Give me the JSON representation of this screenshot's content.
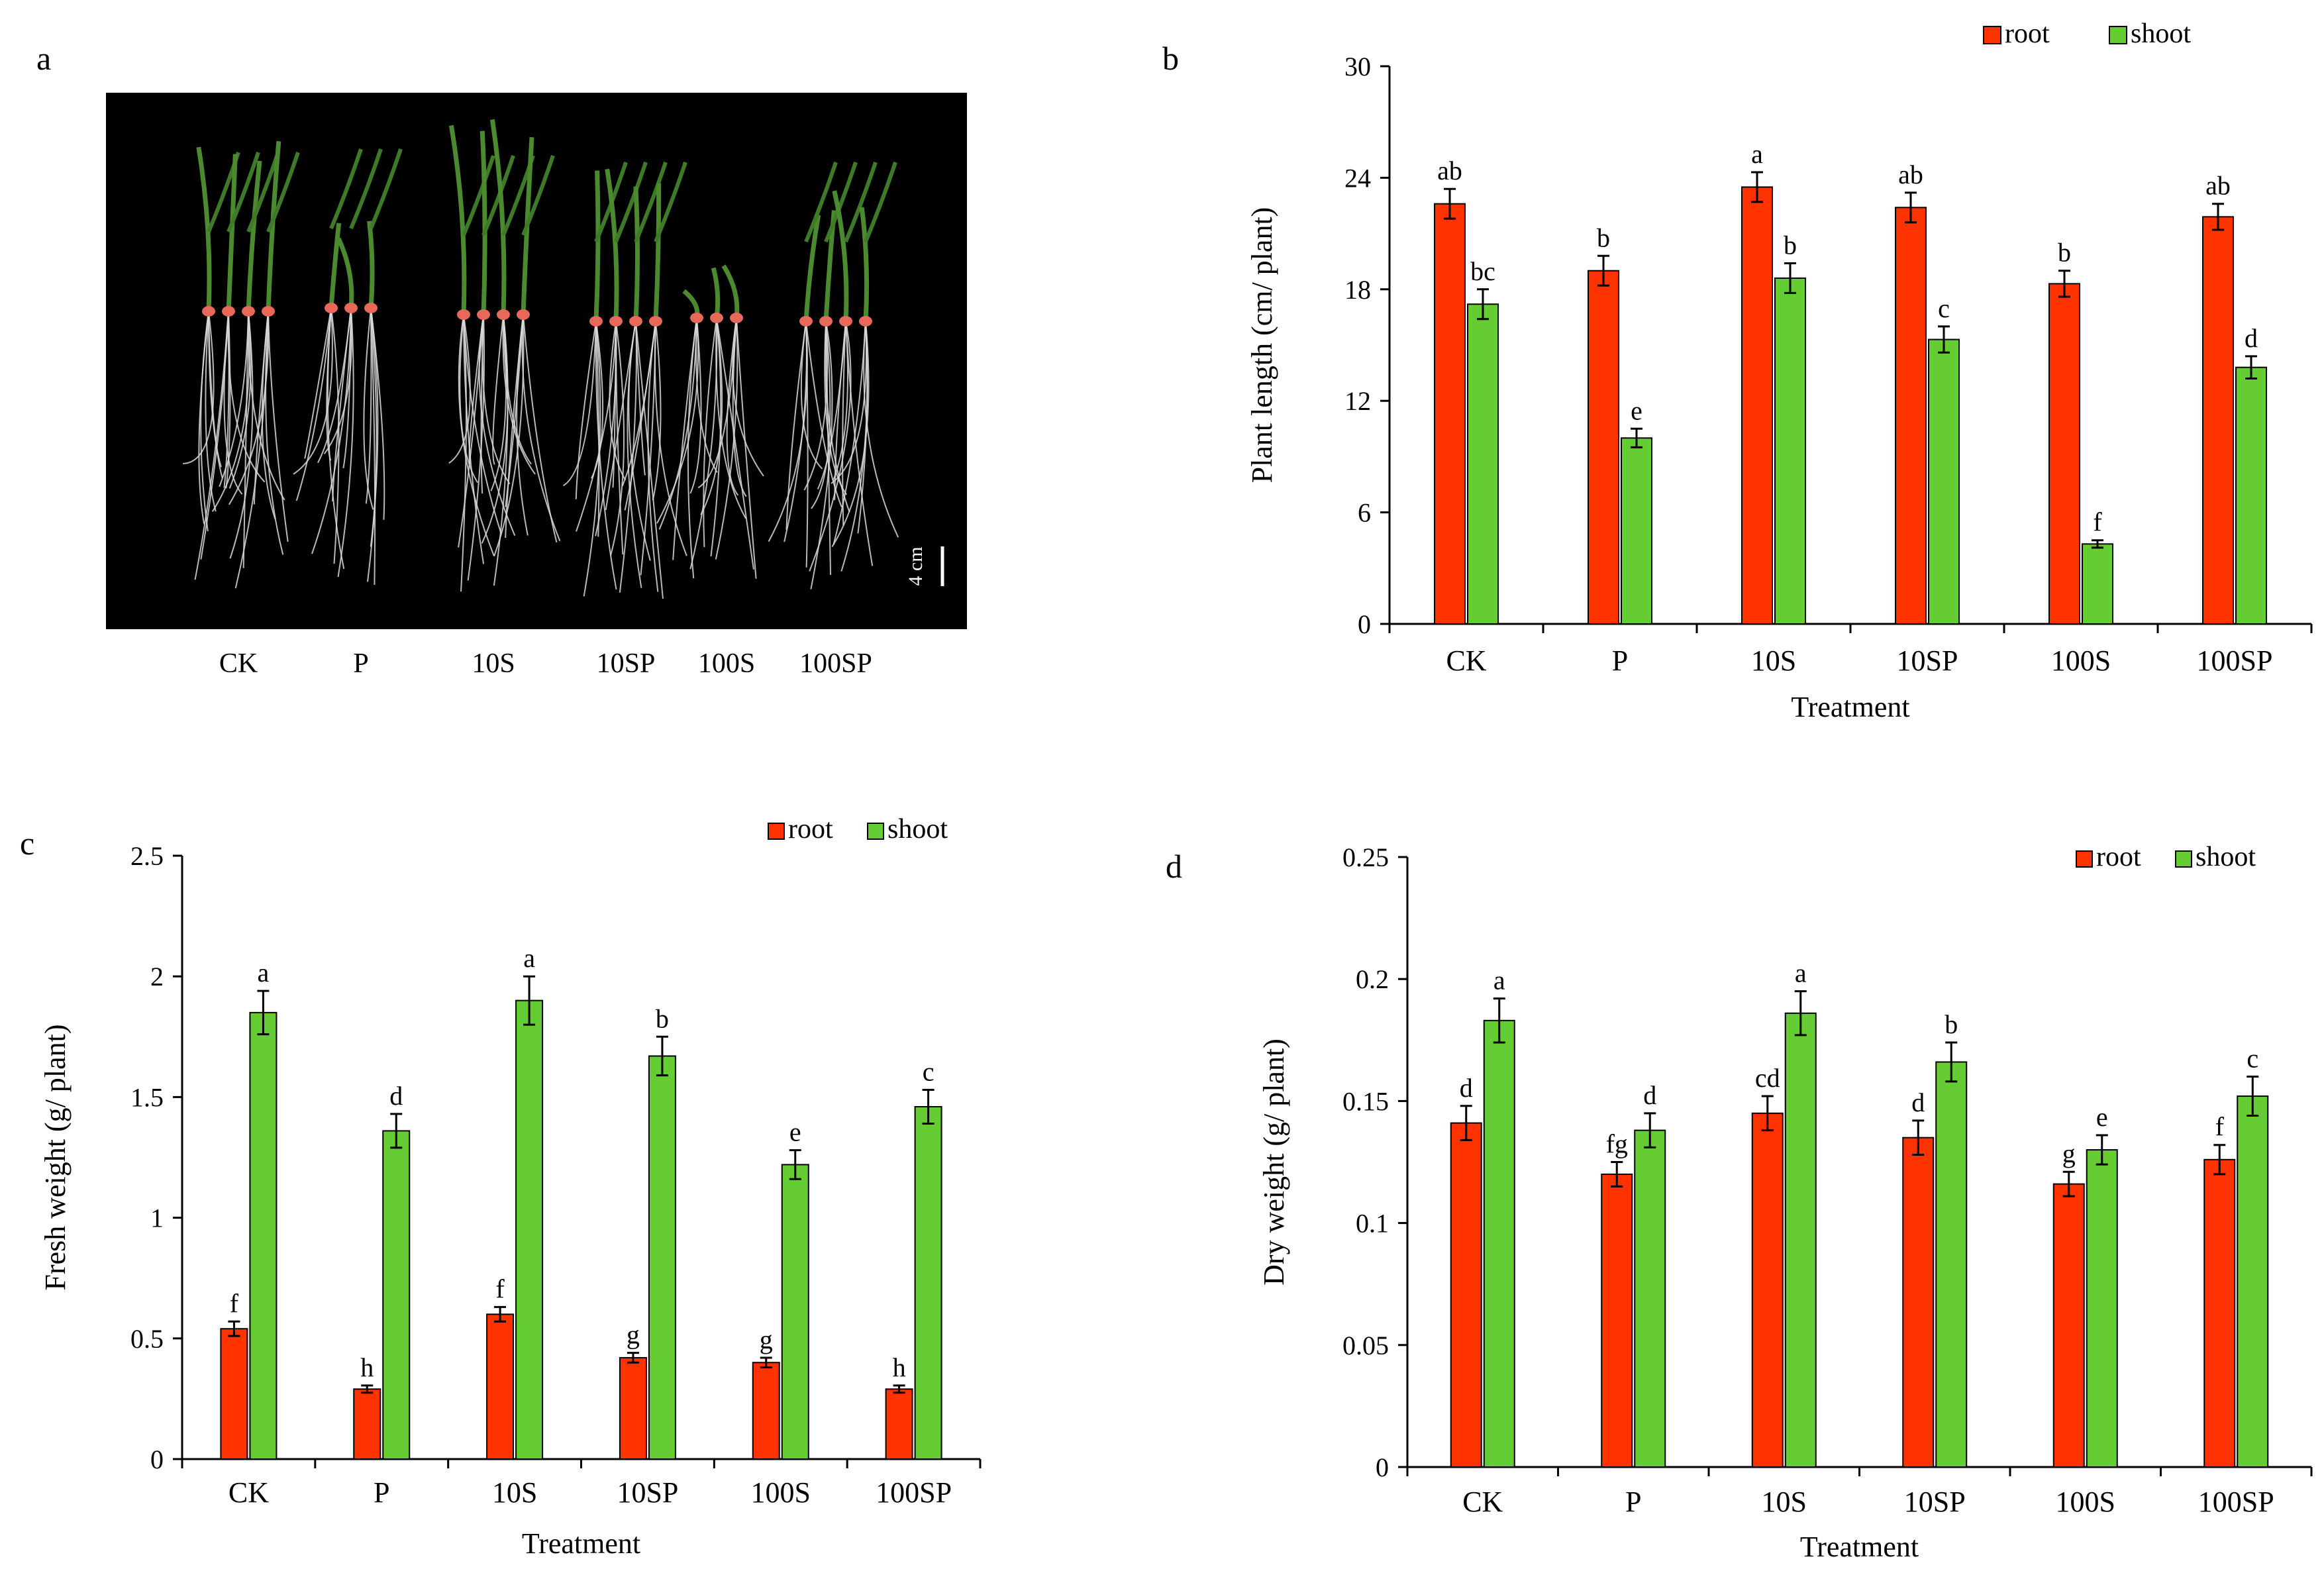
{
  "colors": {
    "root": "#ff3300",
    "shoot": "#66cc33",
    "axis": "#000000",
    "photo_bg": "#000000"
  },
  "panel_a": {
    "label": "a",
    "labels": [
      "CK",
      "P",
      "10S",
      "10SP",
      "100S",
      "100SP"
    ],
    "scale_text": "4 cm"
  },
  "chart_data": [
    {
      "panel": "b",
      "type": "bar",
      "title": "",
      "xlabel": "Treatment",
      "ylabel": "Plant length (cm/ plant)",
      "ylim": [
        0,
        30
      ],
      "yticks": [
        0,
        6,
        12,
        18,
        24,
        30
      ],
      "ytick_labels": [
        "0",
        "6",
        "12",
        "18",
        "24",
        "30"
      ],
      "legend": "top-right",
      "categories": [
        "CK",
        "P",
        "10S",
        "10SP",
        "100S",
        "100SP"
      ],
      "series": [
        {
          "name": "root",
          "values": [
            22.6,
            19.0,
            23.5,
            22.4,
            18.3,
            21.9
          ],
          "errors": [
            0.8,
            0.8,
            0.8,
            0.8,
            0.7,
            0.7
          ],
          "letters": [
            "ab",
            "b",
            "a",
            "ab",
            "b",
            "ab"
          ]
        },
        {
          "name": "shoot",
          "values": [
            17.2,
            10.0,
            18.6,
            15.3,
            4.3,
            13.8
          ],
          "errors": [
            0.8,
            0.5,
            0.8,
            0.7,
            0.2,
            0.6
          ],
          "letters": [
            "bc",
            "e",
            "b",
            "c",
            "f",
            "d"
          ]
        }
      ]
    },
    {
      "panel": "c",
      "type": "bar",
      "title": "",
      "xlabel": "Treatment",
      "ylabel": "Fresh weight (g/ plant)",
      "ylim": [
        0,
        2.5
      ],
      "yticks": [
        0,
        0.5,
        1,
        1.5,
        2,
        2.5
      ],
      "ytick_labels": [
        "0",
        "0.5",
        "1",
        "1.5",
        "2",
        "2.5"
      ],
      "legend": "top-right",
      "categories": [
        "CK",
        "P",
        "10S",
        "10SP",
        "100S",
        "100SP"
      ],
      "series": [
        {
          "name": "root",
          "values": [
            0.54,
            0.29,
            0.6,
            0.42,
            0.4,
            0.29
          ],
          "errors": [
            0.03,
            0.015,
            0.03,
            0.02,
            0.02,
            0.015
          ],
          "letters": [
            "f",
            "h",
            "f",
            "g",
            "g",
            "h"
          ]
        },
        {
          "name": "shoot",
          "values": [
            1.85,
            1.36,
            1.9,
            1.67,
            1.22,
            1.46
          ],
          "errors": [
            0.09,
            0.07,
            0.1,
            0.08,
            0.06,
            0.07
          ],
          "letters": [
            "a",
            "d",
            "a",
            "b",
            "e",
            "c"
          ]
        }
      ]
    },
    {
      "panel": "d",
      "type": "bar",
      "title": "",
      "xlabel": "Treatment",
      "ylabel": "Dry weight (g/ plant)",
      "ylim": [
        0,
        0.25
      ],
      "yticks": [
        0,
        0.05,
        0.1,
        0.15,
        0.2,
        0.25
      ],
      "ytick_labels": [
        "0",
        "0.05",
        "0.1",
        "0.15",
        "0.2",
        "0.25"
      ],
      "legend": "top-right",
      "categories": [
        "CK",
        "P",
        "10S",
        "10SP",
        "100S",
        "100SP"
      ],
      "series": [
        {
          "name": "root",
          "values": [
            0.141,
            0.12,
            0.145,
            0.135,
            0.116,
            0.126
          ],
          "errors": [
            0.007,
            0.005,
            0.007,
            0.007,
            0.005,
            0.006
          ],
          "letters": [
            "d",
            "fg",
            "cd",
            "d",
            "g",
            "f"
          ]
        },
        {
          "name": "shoot",
          "values": [
            0.183,
            0.138,
            0.186,
            0.166,
            0.13,
            0.152
          ],
          "errors": [
            0.009,
            0.007,
            0.009,
            0.008,
            0.006,
            0.008
          ],
          "letters": [
            "a",
            "d",
            "a",
            "b",
            "e",
            "c"
          ]
        }
      ]
    }
  ]
}
